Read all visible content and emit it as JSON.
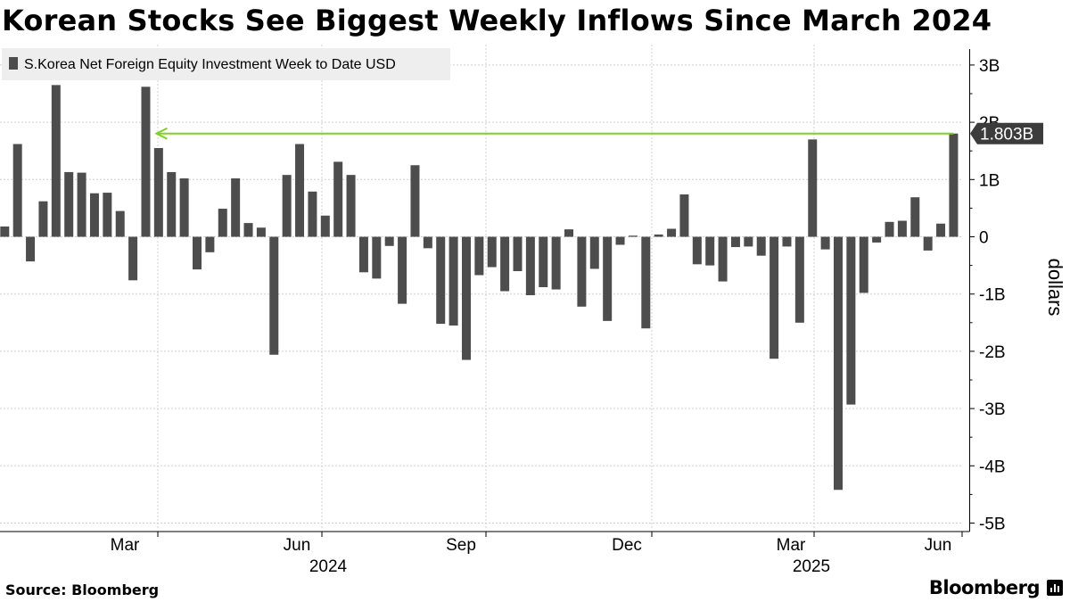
{
  "title": "Korean Stocks See Biggest Weekly Inflows Since March 2024",
  "footer": {
    "source": "Source: Bloomberg",
    "brand": "Bloomberg"
  },
  "colors": {
    "bar": "#4d4d4d",
    "arrow": "#7ed321",
    "grid": "#d0d0d0",
    "legend_bg": "#eeeeee"
  },
  "chart_data": {
    "type": "bar",
    "legend": [
      "S.Korea Net Foreign Equity Investment Week to Date USD"
    ],
    "ylabel": "dollars",
    "ylim": [
      -5.2,
      3.2
    ],
    "yticks": [
      3,
      2,
      1,
      0,
      -1,
      -2,
      -3,
      -4,
      -5
    ],
    "ytick_labels": [
      "3B",
      "2B",
      "1B",
      "0",
      "-1B",
      "-2B",
      "-3B",
      "-4B",
      "-5B"
    ],
    "xtick_labels": [
      "Mar",
      "Jun",
      "Sep",
      "Dec",
      "Mar",
      "Jun"
    ],
    "year_labels": [
      "2024",
      "2025"
    ],
    "last_value_label": "1.803B",
    "annotation": "arrow from latest bar back to March 2024 bar at 1.803B",
    "grid": true,
    "legend_position": "top-left",
    "series": [
      {
        "name": "S.Korea Net Foreign Equity Investment Week to Date USD",
        "values": [
          0.18,
          1.62,
          -0.43,
          0.62,
          2.65,
          1.13,
          1.12,
          0.76,
          0.77,
          0.45,
          -0.76,
          2.62,
          1.55,
          1.13,
          1.02,
          -0.57,
          -0.27,
          0.49,
          1.02,
          0.24,
          0.16,
          -2.06,
          1.08,
          1.62,
          0.79,
          0.37,
          1.31,
          1.08,
          -0.62,
          -0.73,
          -0.16,
          -1.17,
          1.25,
          -0.2,
          -1.52,
          -1.55,
          -2.15,
          -0.67,
          -0.53,
          -0.95,
          -0.6,
          -1.02,
          -0.88,
          -0.92,
          0.13,
          -1.22,
          -0.56,
          -1.47,
          -0.14,
          0.02,
          -1.6,
          0.04,
          0.14,
          0.74,
          -0.48,
          -0.5,
          -0.78,
          -0.18,
          -0.17,
          -0.33,
          -2.13,
          -0.17,
          -1.5,
          1.7,
          -0.22,
          -4.42,
          -2.93,
          -0.98,
          -0.1,
          0.26,
          0.28,
          0.69,
          -0.24,
          0.23,
          1.803
        ]
      }
    ]
  }
}
